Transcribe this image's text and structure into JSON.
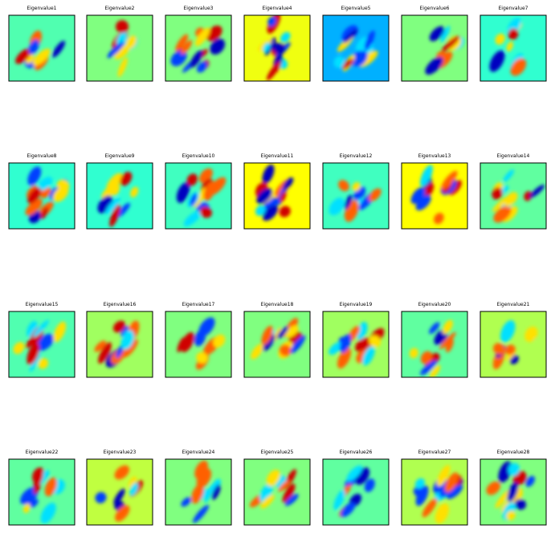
{
  "panels": [
    {
      "title": "Eigenvalue1",
      "color": "#50ffb0"
    },
    {
      "title": "Eigenvalue2",
      "color": "#80ff80"
    },
    {
      "title": "Eigenvalue3",
      "color": "#80ff80"
    },
    {
      "title": "Eigenvalue4",
      "color": "#f0ff10"
    },
    {
      "title": "Eigenvalue5",
      "color": "#00b0ff"
    },
    {
      "title": "Eigenvalue6",
      "color": "#80ff80"
    },
    {
      "title": "Eigenvalue7",
      "color": "#30ffd0"
    },
    {
      "title": "Eigenvalue8",
      "color": "#30ffd0"
    },
    {
      "title": "Eigenvalue9",
      "color": "#30ffd0"
    },
    {
      "title": "Eigenvalue10",
      "color": "#40ffc0"
    },
    {
      "title": "Eigenvalue11",
      "color": "#ffff00"
    },
    {
      "title": "Eigenvalue12",
      "color": "#40ffc0"
    },
    {
      "title": "Eigenvalue13",
      "color": "#ffff00"
    },
    {
      "title": "Eigenvalue14",
      "color": "#60ffa0"
    },
    {
      "title": "Eigenvalue15",
      "color": "#50ffb0"
    },
    {
      "title": "Eigenvalue16",
      "color": "#a0ff60"
    },
    {
      "title": "Eigenvalue17",
      "color": "#80ff80"
    },
    {
      "title": "Eigenvalue18",
      "color": "#80ff80"
    },
    {
      "title": "Eigenvalue19",
      "color": "#a0ff60"
    },
    {
      "title": "Eigenvalue20",
      "color": "#60ffa0"
    },
    {
      "title": "Eigenvalue21",
      "color": "#b0ff50"
    },
    {
      "title": "Eigenvalue22",
      "color": "#60ffa0"
    },
    {
      "title": "Eigenvalue23",
      "color": "#c0ff40"
    },
    {
      "title": "Eigenvalue24",
      "color": "#80ff80"
    },
    {
      "title": "Eigenvalue25",
      "color": "#80ff80"
    },
    {
      "title": "Eigenvalue26",
      "color": "#60ffa0"
    },
    {
      "title": "Eigenvalue27",
      "color": "#b0ff50"
    },
    {
      "title": "Eigenvalue28",
      "color": "#80ff80"
    }
  ]
}
